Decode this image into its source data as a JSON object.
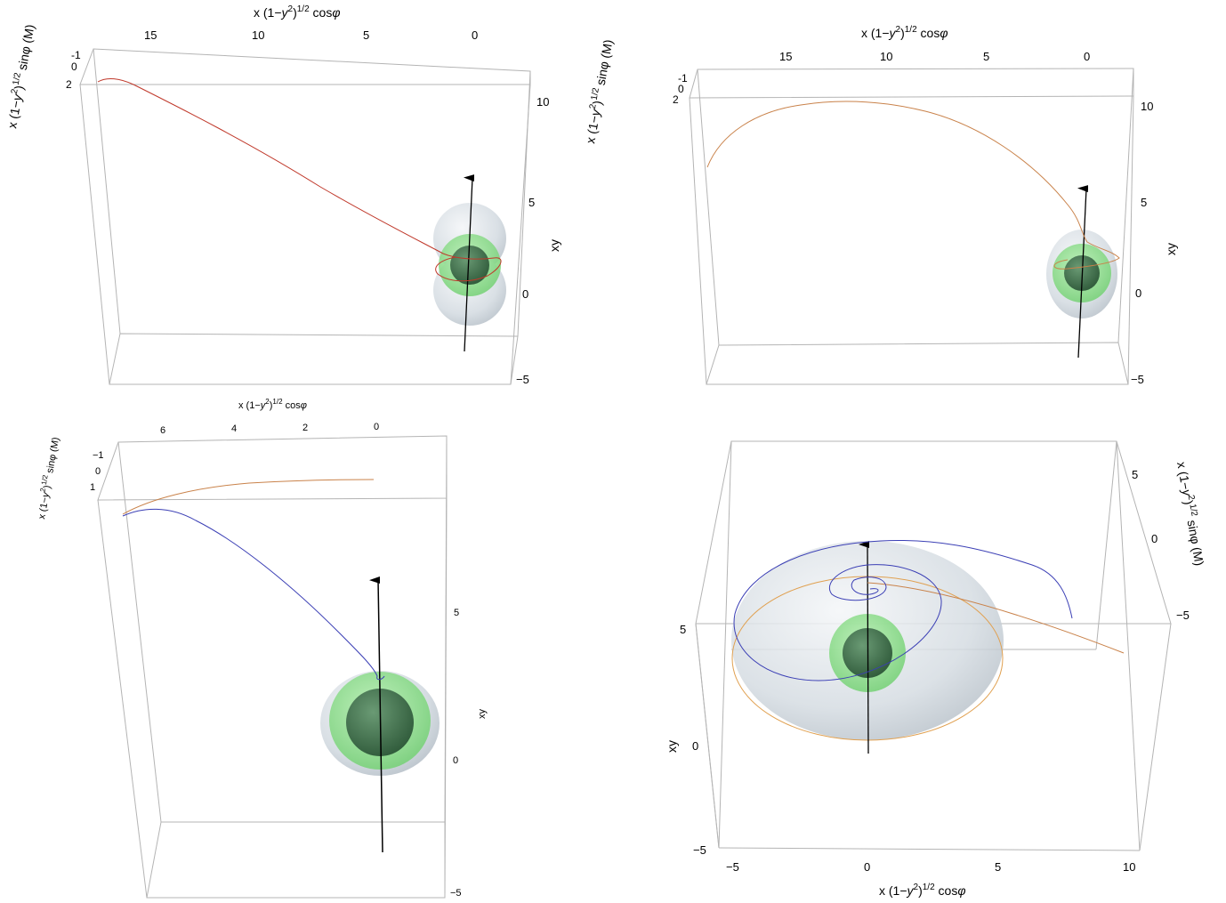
{
  "figure": {
    "background": "#ffffff",
    "colors": {
      "box": "#b4b4b4",
      "tick_text": "#000000",
      "horizon_outer": "#d7dde2",
      "horizon_ergo": "#7fd67f",
      "horizon_inner": "#3f6f4a",
      "spin_axis": "#000000",
      "orbit_red": "#c0392b",
      "orbit_orange": "#c9824a",
      "orbit_blue": "#3b3fb5"
    }
  },
  "chart_data": [
    {
      "type": "line",
      "panel": "top-left",
      "x_label": "x (1−y²)¹ᐟ² cosφ",
      "x_label_parts": {
        "a": "x (1−",
        "b": "y",
        "c": "2",
        "d": ")",
        "e": "1/2",
        "f": " cos",
        "g": "φ"
      },
      "x_ticks": [
        "15",
        "10",
        "5",
        "0"
      ],
      "y_label_parts": {
        "a": "x (1−",
        "b": "y",
        "c": "2",
        "d": ")",
        "e": "1/2",
        "f": "  sinφ (M)"
      },
      "y_ticks": [
        "-1",
        "0",
        "2"
      ],
      "z_label": "xy",
      "z_ticks": [
        "10",
        "5",
        "0",
        "−5"
      ],
      "series": [
        {
          "color": "orbit_red",
          "values_desc": "trajectory from x≈17 descending to black hole"
        }
      ]
    },
    {
      "type": "line",
      "panel": "top-right",
      "x_label_parts": {
        "a": "x (1−",
        "b": "y",
        "c": "2",
        "d": ")",
        "e": "1/2",
        "f": " cos",
        "g": "φ"
      },
      "x_ticks": [
        "15",
        "10",
        "5",
        "0"
      ],
      "y_label_parts": {
        "a": "x (1−",
        "b": "y",
        "c": "2",
        "d": ")",
        "e": "1/2",
        "f": "  sinφ (M)"
      },
      "y_ticks": [
        "-1",
        "0",
        "2"
      ],
      "z_label": "xy",
      "z_ticks": [
        "10",
        "5",
        "0",
        "−5"
      ]
    },
    {
      "type": "line",
      "panel": "bottom-left",
      "x_label_parts": {
        "a": "x (1−",
        "b": "y",
        "c": "2",
        "d": ")",
        "e": "1/2",
        "f": " cos",
        "g": "φ"
      },
      "x_ticks": [
        "6",
        "4",
        "2",
        "0"
      ],
      "y_label_parts": {
        "a": "x (1−",
        "b": "y",
        "c": "2",
        "d": ")",
        "e": "1/2",
        "f": "  sinφ (M)"
      },
      "y_ticks": [
        "−1",
        "0",
        "1"
      ],
      "z_label": "xy",
      "z_ticks": [
        "5",
        "0",
        "−5"
      ]
    },
    {
      "type": "line",
      "panel": "bottom-right",
      "x_label_parts": {
        "a": "x (1−",
        "b": "y",
        "c": "2",
        "d": ")",
        "e": "1/2",
        "f": " cos",
        "g": "φ"
      },
      "x_ticks": [
        "−5",
        "0",
        "5",
        "10"
      ],
      "y_label_parts": {
        "a": "x (1−",
        "b": "y",
        "c": "2",
        "d": ")",
        "e": "1/2",
        "f": "  sinφ (M)"
      },
      "y_ticks": [
        "5",
        "0",
        "−5"
      ],
      "z_label": "xy",
      "z_ticks": [
        "5",
        "0",
        "−5"
      ]
    }
  ]
}
